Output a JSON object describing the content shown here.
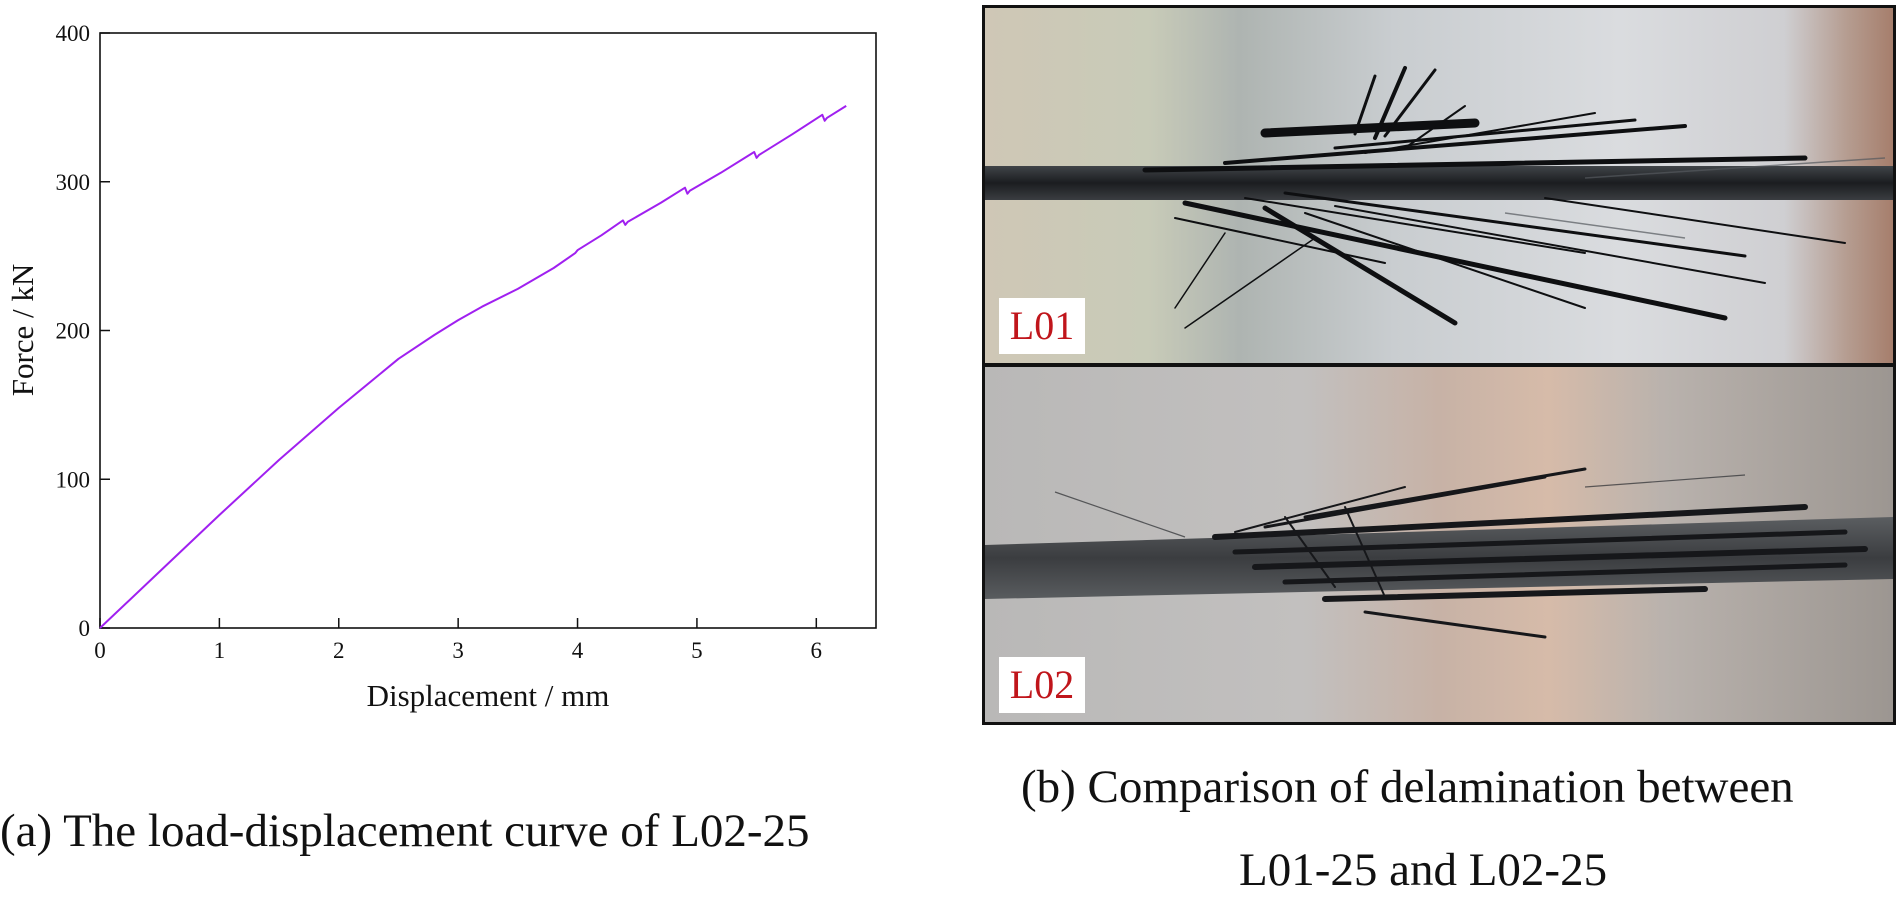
{
  "chart_data": {
    "type": "line",
    "xlabel": "Displacement / mm",
    "ylabel": "Force / kN",
    "xlim": [
      0,
      6.5
    ],
    "ylim": [
      0,
      400
    ],
    "xticks": [
      "0",
      "1",
      "2",
      "3",
      "4",
      "5",
      "6"
    ],
    "yticks": [
      "0",
      "100",
      "200",
      "300",
      "400"
    ],
    "grid": false,
    "line_color": "#a020f0",
    "series": [
      {
        "x": [
          0,
          0.5,
          1.0,
          1.5,
          2.0,
          2.5,
          2.8,
          3.0,
          3.2,
          3.5,
          3.8,
          3.98,
          4.0,
          4.02,
          4.2,
          4.38,
          4.4,
          4.42,
          4.7,
          4.9,
          4.92,
          4.94,
          5.2,
          5.48,
          5.5,
          5.52,
          5.8,
          6.05,
          6.07,
          6.09,
          6.25
        ],
        "y": [
          0,
          38,
          76,
          113,
          148,
          181,
          197,
          207,
          216,
          228,
          242,
          252,
          254,
          255,
          264,
          274,
          271,
          273,
          286,
          296,
          292,
          294,
          306,
          320,
          316,
          318,
          332,
          345,
          341,
          343,
          351
        ]
      }
    ]
  },
  "photos": {
    "top_label": "L01",
    "bottom_label": "L02"
  },
  "captions": {
    "a": "(a) The load-displacement curve of L02-25",
    "b_line1": "(b) Comparison of delamination between",
    "b_line2": "L01-25 and L02-25"
  }
}
